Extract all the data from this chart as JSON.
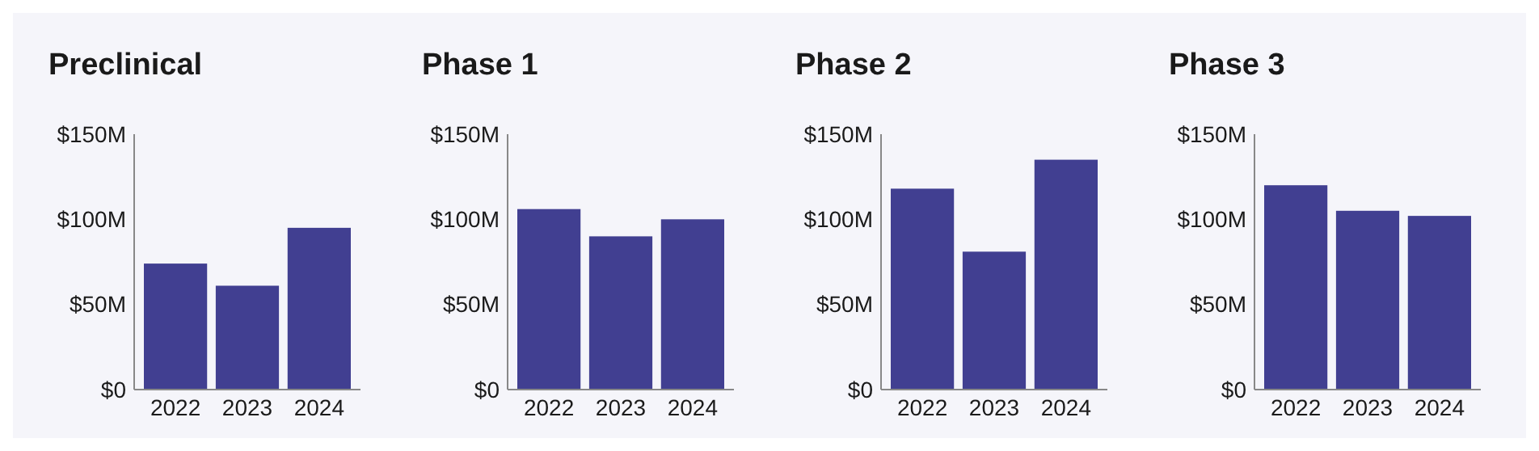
{
  "chart_data": [
    {
      "type": "bar",
      "title": "Preclinical",
      "categories": [
        "2022",
        "2023",
        "2024"
      ],
      "values": [
        74,
        61,
        95
      ],
      "color": "#413f91",
      "ylim": [
        0,
        150
      ],
      "yticks": [
        {
          "value": 0,
          "label": "$0"
        },
        {
          "value": 50,
          "label": "$50M"
        },
        {
          "value": 100,
          "label": "$100M"
        },
        {
          "value": 150,
          "label": "$150M"
        }
      ]
    },
    {
      "type": "bar",
      "title": "Phase 1",
      "categories": [
        "2022",
        "2023",
        "2024"
      ],
      "values": [
        106,
        90,
        100
      ],
      "color": "#413f91",
      "ylim": [
        0,
        150
      ],
      "yticks": [
        {
          "value": 0,
          "label": "$0"
        },
        {
          "value": 50,
          "label": "$50M"
        },
        {
          "value": 100,
          "label": "$100M"
        },
        {
          "value": 150,
          "label": "$150M"
        }
      ]
    },
    {
      "type": "bar",
      "title": "Phase 2",
      "categories": [
        "2022",
        "2023",
        "2024"
      ],
      "values": [
        118,
        81,
        135
      ],
      "color": "#413f91",
      "ylim": [
        0,
        150
      ],
      "yticks": [
        {
          "value": 0,
          "label": "$0"
        },
        {
          "value": 50,
          "label": "$50M"
        },
        {
          "value": 100,
          "label": "$100M"
        },
        {
          "value": 150,
          "label": "$150M"
        }
      ]
    },
    {
      "type": "bar",
      "title": "Phase 3",
      "categories": [
        "2022",
        "2023",
        "2024"
      ],
      "values": [
        120,
        105,
        102
      ],
      "color": "#413f91",
      "ylim": [
        0,
        150
      ],
      "yticks": [
        {
          "value": 0,
          "label": "$0"
        },
        {
          "value": 50,
          "label": "$50M"
        },
        {
          "value": 100,
          "label": "$100M"
        },
        {
          "value": 150,
          "label": "$150M"
        }
      ]
    }
  ]
}
